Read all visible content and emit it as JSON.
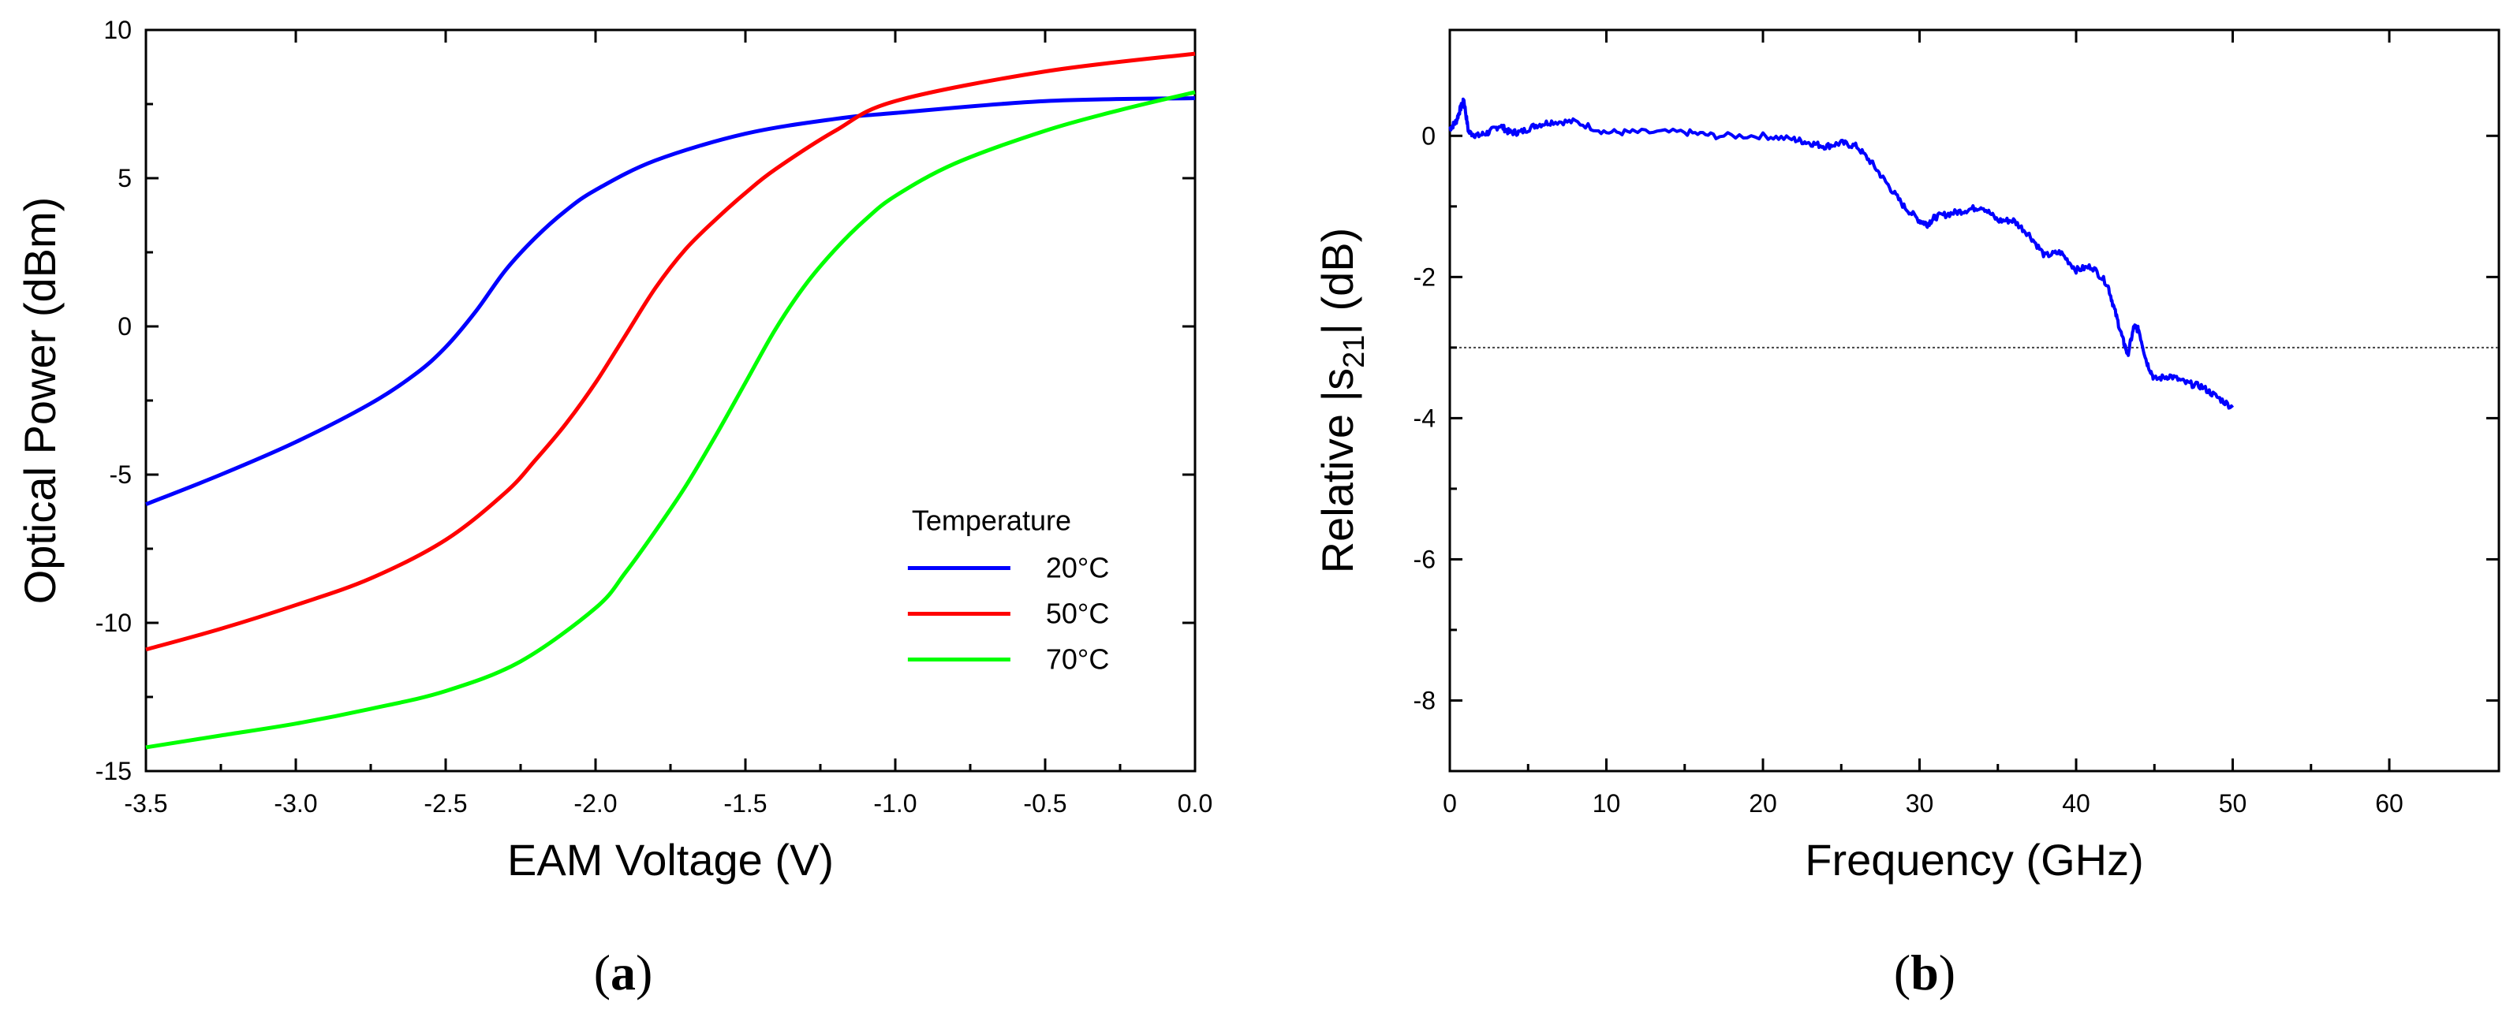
{
  "chart_data": [
    {
      "type": "line",
      "panel_label": "a",
      "xlabel": "EAM Voltage (V)",
      "ylabel": "Optical Power (dBm)",
      "xlim": [
        -3.5,
        0.0
      ],
      "ylim": [
        -15,
        10
      ],
      "xticks": [
        -3.5,
        -3.0,
        -2.5,
        -2.0,
        -1.5,
        -1.0,
        -0.5,
        0.0
      ],
      "xtick_labels": [
        "-3.5",
        "-3.0",
        "-2.5",
        "-2.0",
        "-1.5",
        "-1.0",
        "-0.5",
        "0.0"
      ],
      "yticks": [
        -15,
        -10,
        -5,
        0,
        5,
        10
      ],
      "ytick_labels": [
        "-15",
        "-10",
        "-5",
        "0",
        "5",
        "10"
      ],
      "legend_title": "Temperature",
      "legend_position": "lower-right",
      "series": [
        {
          "name": "20°C",
          "color": "#0000ff",
          "x": [
            -3.5,
            -3.25,
            -3.0,
            -2.75,
            -2.6,
            -2.5,
            -2.4,
            -2.3,
            -2.2,
            -2.1,
            -2.0,
            -1.8,
            -1.5,
            -1.2,
            -1.0,
            -0.5,
            0.0
          ],
          "y": [
            -6.0,
            -5.0,
            -3.9,
            -2.6,
            -1.6,
            -0.7,
            0.5,
            1.9,
            3.0,
            3.9,
            4.6,
            5.6,
            6.5,
            7.0,
            7.2,
            7.6,
            7.7
          ]
        },
        {
          "name": "50°C",
          "color": "#ff0000",
          "x": [
            -3.5,
            -3.25,
            -3.0,
            -2.75,
            -2.5,
            -2.3,
            -2.2,
            -2.1,
            -2.0,
            -1.9,
            -1.8,
            -1.7,
            -1.6,
            -1.5,
            -1.4,
            -1.2,
            -1.0,
            -0.5,
            0.0
          ],
          "y": [
            -10.9,
            -10.2,
            -9.4,
            -8.5,
            -7.2,
            -5.6,
            -4.5,
            -3.3,
            -1.9,
            -0.3,
            1.3,
            2.6,
            3.6,
            4.5,
            5.3,
            6.6,
            7.6,
            8.6,
            9.2
          ]
        },
        {
          "name": "70°C",
          "color": "#00ff00",
          "x": [
            -3.5,
            -3.25,
            -3.0,
            -2.75,
            -2.5,
            -2.25,
            -2.0,
            -1.9,
            -1.8,
            -1.7,
            -1.6,
            -1.5,
            -1.4,
            -1.3,
            -1.2,
            -1.1,
            -1.0,
            -0.8,
            -0.5,
            -0.25,
            0.0
          ],
          "y": [
            -14.2,
            -13.8,
            -13.4,
            -12.9,
            -12.3,
            -11.3,
            -9.5,
            -8.3,
            -6.9,
            -5.4,
            -3.7,
            -1.9,
            -0.1,
            1.4,
            2.6,
            3.6,
            4.4,
            5.5,
            6.6,
            7.3,
            7.9
          ]
        }
      ]
    },
    {
      "type": "line",
      "panel_label": "b",
      "xlabel": "Frequency  (GHz)",
      "ylabel": "Relative |s21|  (dB)",
      "ylabel_main": "Relative |s",
      "ylabel_sub": "21",
      "ylabel_tail": "|  (dB)",
      "xlim": [
        0,
        67
      ],
      "ylim": [
        -9,
        1.5
      ],
      "xticks": [
        0,
        10,
        20,
        30,
        40,
        50,
        60
      ],
      "xtick_labels": [
        "0",
        "10",
        "20",
        "30",
        "40",
        "50",
        "60"
      ],
      "yticks": [
        0,
        -2,
        -4,
        -6,
        -8
      ],
      "ytick_labels": [
        "0",
        "-2",
        "-4",
        "-6",
        "-8"
      ],
      "reference_line": -3,
      "series": [
        {
          "name": "S21",
          "color": "#0000ff",
          "x": [
            0,
            0.4,
            0.7,
            0.9,
            1.2,
            1.8,
            2.5,
            3.2,
            3.8,
            4.5,
            5.5,
            6.5,
            8,
            10,
            12,
            15,
            17,
            20,
            22,
            23,
            24,
            25,
            26,
            27,
            28,
            29,
            30,
            30.5,
            31,
            32,
            33,
            34,
            35,
            36,
            37,
            38,
            39,
            40,
            41,
            42,
            42.5,
            43,
            43.3,
            43.7,
            44,
            44.5,
            45,
            46,
            47,
            48,
            49,
            50
          ],
          "y": [
            0.1,
            0.2,
            0.4,
            0.5,
            0.05,
            0.0,
            0.05,
            0.15,
            0.05,
            0.05,
            0.15,
            0.2,
            0.2,
            0.05,
            0.05,
            0.05,
            0.0,
            0.0,
            -0.05,
            -0.1,
            -0.15,
            -0.1,
            -0.15,
            -0.4,
            -0.7,
            -1.0,
            -1.2,
            -1.25,
            -1.15,
            -1.1,
            -1.05,
            -1.0,
            -1.2,
            -1.2,
            -1.4,
            -1.7,
            -1.65,
            -1.9,
            -1.85,
            -2.1,
            -2.5,
            -2.9,
            -3.1,
            -2.7,
            -2.75,
            -3.2,
            -3.45,
            -3.4,
            -3.5,
            -3.55,
            -3.7,
            -3.85
          ]
        }
      ]
    }
  ]
}
